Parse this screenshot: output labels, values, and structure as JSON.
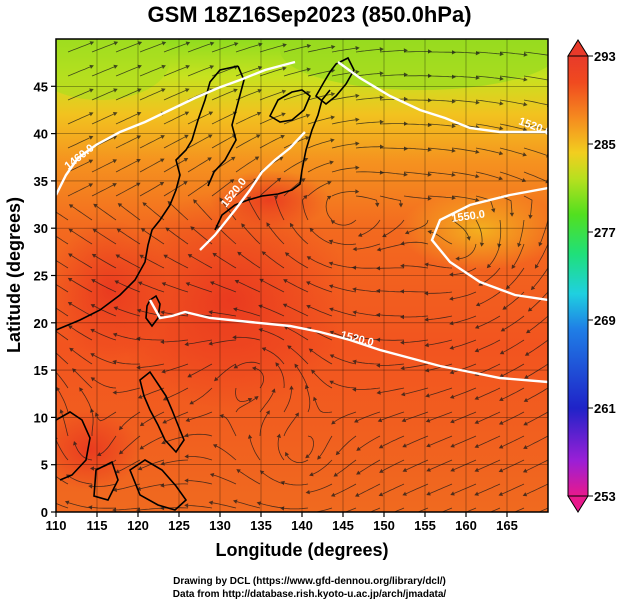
{
  "title": "GSM 18Z16Sep2023 (850.0hPa)",
  "axes": {
    "xlabel": "Longitude (degrees)",
    "ylabel": "Latitude  (degrees)",
    "x_ticks": [
      "110",
      "115",
      "120",
      "125",
      "130",
      "135",
      "140",
      "145",
      "150",
      "155",
      "160",
      "165"
    ],
    "y_ticks": [
      "0",
      "5",
      "10",
      "15",
      "20",
      "25",
      "30",
      "35",
      "40",
      "45"
    ],
    "xlim": [
      110,
      170
    ],
    "ylim": [
      0,
      50
    ]
  },
  "colorbar": {
    "labels": [
      "293",
      "285",
      "277",
      "269",
      "261",
      "253"
    ],
    "range": [
      253,
      293
    ],
    "colors": [
      "#e8198c",
      "#9b1fd6",
      "#1f23c8",
      "#1f7fe6",
      "#1fd0e0",
      "#1fe07a",
      "#52e01f",
      "#b6e01f",
      "#f2ce1f",
      "#f58a1f",
      "#f04a1f",
      "#e83a2a"
    ]
  },
  "contours": [
    {
      "label": "1460.0"
    },
    {
      "label": "1520.0"
    },
    {
      "label": "1520.0"
    },
    {
      "label": "1550.0"
    },
    {
      "label": "1520.0"
    }
  ],
  "credits": {
    "line1": "Drawing by DCL (https://www.gfd-dennou.org/library/dcl/)",
    "line2": "Data from http://database.rish.kyoto-u.ac.jp/arch/jmadata/"
  }
}
